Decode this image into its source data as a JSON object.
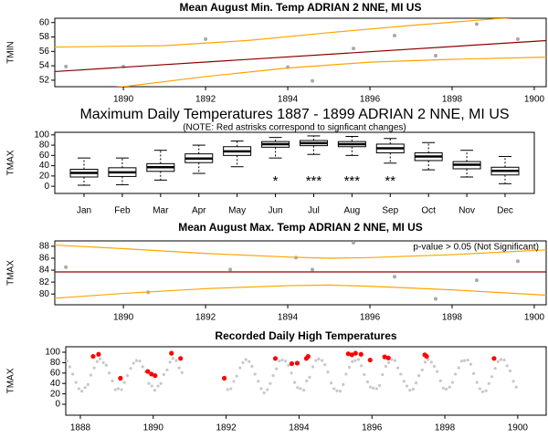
{
  "chart_data": [
    {
      "type": "scatter",
      "title": "Mean August Min. Temp ADRIAN 2 NNE, MI US",
      "y_label": "TMIN",
      "xlim": [
        1888.33,
        1900.29
      ],
      "ylim": [
        51.1,
        60.6
      ],
      "xticks": [
        1890,
        1892,
        1894,
        1896,
        1898,
        1900
      ],
      "yticks": [
        52,
        54,
        56,
        58,
        60
      ],
      "series": [
        {
          "mode": "markers",
          "color": "#a9a9a9",
          "x": [
            1888.6,
            1890.0,
            1892.0,
            1894.0,
            1894.6,
            1895.6,
            1896.6,
            1897.6,
            1898.6,
            1899.6
          ],
          "values": [
            53.9,
            53.9,
            57.7,
            53.8,
            51.9,
            56.4,
            58.2,
            55.4,
            59.8,
            57.7
          ]
        },
        {
          "mode": "lines",
          "color": "#8b0000",
          "x": [
            1888.33,
            1900.29
          ],
          "values": [
            53.2,
            57.5
          ]
        },
        {
          "mode": "lines",
          "color": "#ffa500",
          "x": [
            1888.33,
            1891,
            1893,
            1895,
            1897,
            1899,
            1900.29
          ],
          "values": [
            56.6,
            56.8,
            57.5,
            58.6,
            59.6,
            60.5,
            61.0
          ]
        },
        {
          "mode": "lines",
          "color": "#ffa500",
          "x": [
            1888.33,
            1890,
            1892,
            1894,
            1896,
            1898,
            1900.29
          ],
          "values": [
            50.5,
            51.1,
            52.5,
            53.7,
            54.5,
            54.9,
            55.2
          ]
        }
      ]
    },
    {
      "type": "boxplot",
      "title": "Maximum Daily Temperatures 1887 - 1899 ADRIAN 2 NNE, MI US",
      "subtitle": "(NOTE: Red astrisks correspond to signficant changes)",
      "y_label": "TMAX",
      "ylim": [
        -14,
        105
      ],
      "yticks": [
        0,
        20,
        40,
        60,
        80,
        100
      ],
      "categories": [
        "Jan",
        "Feb",
        "Mar",
        "Apr",
        "May",
        "Jun",
        "Jul",
        "Aug",
        "Sep",
        "Oct",
        "Nov",
        "Dec"
      ],
      "whisker_low": [
        2,
        3,
        12,
        25,
        38,
        55,
        62,
        60,
        45,
        32,
        18,
        5
      ],
      "q1": [
        18,
        19,
        29,
        46,
        60,
        76,
        79,
        77,
        65,
        50,
        34,
        22
      ],
      "median": [
        26,
        27,
        37,
        54,
        68,
        82,
        84,
        82,
        74,
        58,
        42,
        30
      ],
      "q3": [
        33,
        36,
        44,
        63,
        77,
        87,
        89,
        87,
        82,
        65,
        48,
        37
      ],
      "whisker_high": [
        55,
        55,
        70,
        80,
        88,
        95,
        98,
        97,
        93,
        85,
        70,
        58
      ],
      "significance": [
        null,
        null,
        null,
        null,
        null,
        "*",
        "***",
        "***",
        "**",
        null,
        null,
        null
      ],
      "color": "#000000",
      "significance_color": "#ff0000"
    },
    {
      "type": "scatter",
      "title": "Mean August Max. Temp ADRIAN 2 NNE, MI US",
      "y_label": "TMAX",
      "annotation": "p-value > 0.05 (Not Significant)",
      "xlim": [
        1888.33,
        1900.29
      ],
      "ylim": [
        78.2,
        88.9
      ],
      "xticks": [
        1890,
        1892,
        1894,
        1896,
        1898,
        1900
      ],
      "yticks": [
        80,
        82,
        84,
        86,
        88
      ],
      "series": [
        {
          "mode": "markers",
          "color": "#a9a9a9",
          "x": [
            1888.6,
            1890.6,
            1892.6,
            1894.2,
            1894.6,
            1895.6,
            1896.6,
            1897.6,
            1898.6,
            1899.6
          ],
          "values": [
            84.5,
            80.3,
            84.1,
            86.1,
            84.1,
            88.6,
            82.9,
            79.2,
            82.3,
            85.5
          ]
        },
        {
          "mode": "lines",
          "color": "#8b0000",
          "x": [
            1888.33,
            1900.29
          ],
          "values": [
            83.7,
            83.7
          ]
        },
        {
          "mode": "lines",
          "color": "#ffa500",
          "x": [
            1888.33,
            1890,
            1892,
            1894,
            1895,
            1896,
            1898,
            1900.29
          ],
          "values": [
            88.2,
            87.6,
            86.8,
            86.2,
            86.0,
            86.1,
            86.6,
            87.4
          ]
        },
        {
          "mode": "lines",
          "color": "#ffa500",
          "x": [
            1888.33,
            1890,
            1892,
            1894,
            1895,
            1896,
            1898,
            1900.29
          ],
          "values": [
            79.3,
            80.1,
            80.9,
            81.4,
            81.5,
            81.3,
            80.7,
            79.8
          ]
        }
      ]
    },
    {
      "type": "scatter",
      "title": "Recorded Daily High Temperatures",
      "y_label": "TMAX",
      "xlim": [
        1887.6,
        1900.78
      ],
      "ylim": [
        -21,
        110.5
      ],
      "xticks": [
        1888,
        1890,
        1892,
        1894,
        1896,
        1898,
        1900
      ],
      "yticks": [
        0,
        20,
        40,
        60,
        80,
        100
      ],
      "series": [
        {
          "mode": "markers",
          "color": "#c8c8c8",
          "size": 1.6,
          "x": [
            1887.54,
            1887.63,
            1887.71,
            1887.79,
            1887.88,
            1887.96,
            1888.04,
            1888.13,
            1888.21,
            1888.29,
            1888.38,
            1888.46,
            1888.54,
            1888.63,
            1888.71,
            1888.79,
            1888.88,
            1888.96,
            1889.04,
            1889.13,
            1889.21,
            1889.29,
            1889.38,
            1889.46,
            1889.54,
            1889.63,
            1889.71,
            1889.79,
            1889.88,
            1889.96,
            1890.04,
            1890.13,
            1890.21,
            1890.29,
            1890.38,
            1890.46,
            1890.54,
            1890.63,
            1890.71,
            1890.79,
            1892.04,
            1892.13,
            1892.21,
            1892.29,
            1892.38,
            1892.46,
            1892.54,
            1892.63,
            1892.71,
            1892.79,
            1892.88,
            1892.96,
            1893.04,
            1893.13,
            1893.21,
            1893.29,
            1893.38,
            1893.46,
            1893.54,
            1893.63,
            1893.71,
            1893.79,
            1893.88,
            1893.96,
            1894.04,
            1894.13,
            1894.21,
            1894.29,
            1894.38,
            1894.46,
            1894.54,
            1894.63,
            1894.71,
            1894.79,
            1894.88,
            1894.96,
            1895.04,
            1895.13,
            1895.21,
            1895.29,
            1895.38,
            1895.46,
            1895.54,
            1895.63,
            1895.71,
            1895.79,
            1895.88,
            1895.96,
            1896.04,
            1896.13,
            1896.21,
            1896.29,
            1896.38,
            1896.46,
            1896.54,
            1896.63,
            1896.71,
            1896.79,
            1896.88,
            1896.96,
            1897.04,
            1897.13,
            1897.21,
            1897.29,
            1897.38,
            1897.46,
            1897.54,
            1897.63,
            1897.71,
            1897.79,
            1897.88,
            1897.96,
            1898.04,
            1898.13,
            1898.21,
            1898.29,
            1898.38,
            1898.46,
            1898.54,
            1898.63,
            1898.71,
            1898.79,
            1898.88,
            1898.96,
            1899.04,
            1899.13,
            1899.21,
            1899.29,
            1899.38,
            1899.46,
            1899.54,
            1899.63,
            1899.71,
            1899.79,
            1899.88,
            1899.96
          ],
          "values": [
            85,
            83,
            72,
            58,
            42,
            30,
            25,
            32,
            38,
            56,
            70,
            82,
            87,
            80,
            75,
            60,
            45,
            28,
            30,
            28,
            42,
            55,
            69,
            79,
            84,
            83,
            72,
            62,
            40,
            35,
            27,
            35,
            40,
            57,
            66,
            81,
            88,
            84,
            70,
            61,
            28,
            30,
            44,
            54,
            70,
            80,
            86,
            82,
            73,
            58,
            44,
            30,
            22,
            28,
            40,
            55,
            68,
            83,
            85,
            83,
            75,
            60,
            42,
            32,
            30,
            27,
            45,
            52,
            72,
            84,
            87,
            84,
            76,
            62,
            41,
            30,
            26,
            25,
            38,
            58,
            71,
            82,
            84,
            86,
            74,
            57,
            43,
            33,
            31,
            30,
            36,
            57,
            73,
            80,
            86,
            84,
            70,
            58,
            44,
            35,
            27,
            29,
            41,
            55,
            66,
            81,
            86,
            81,
            73,
            63,
            45,
            31,
            29,
            33,
            42,
            58,
            70,
            83,
            84,
            85,
            77,
            59,
            42,
            30,
            24,
            26,
            40,
            53,
            69,
            82,
            86,
            85,
            74,
            64,
            44,
            33
          ]
        },
        {
          "mode": "markers",
          "color": "#ff0000",
          "size": 2.6,
          "x": [
            1888.35,
            1888.5,
            1889.1,
            1889.85,
            1889.95,
            1890.05,
            1890.5,
            1890.75,
            1891.95,
            1893.35,
            1893.8,
            1893.95,
            1894.2,
            1894.25,
            1895.35,
            1895.45,
            1895.55,
            1895.7,
            1895.95,
            1896.35,
            1896.45,
            1897.45,
            1897.5,
            1899.35
          ],
          "values": [
            92,
            96,
            50,
            63,
            58,
            55,
            98,
            88,
            50,
            88,
            78,
            79,
            88,
            92,
            97,
            95,
            98,
            96,
            85,
            91,
            89,
            95,
            92,
            88
          ]
        }
      ]
    }
  ]
}
